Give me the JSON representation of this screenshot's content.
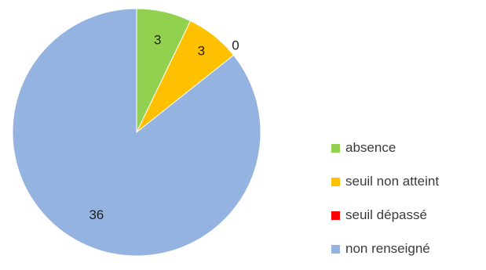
{
  "chart_data": {
    "type": "pie",
    "title": "",
    "categories": [
      "absence",
      "seuil non atteint",
      "seuil dépassé",
      "non renseigné"
    ],
    "values": [
      3,
      3,
      0,
      36
    ],
    "data_labels": [
      "3",
      "3",
      "0",
      "36"
    ],
    "colors": [
      "#92d050",
      "#ffc000",
      "#ff0000",
      "#95b3e1"
    ],
    "start_angle": "12 o'clock",
    "direction": "clockwise",
    "legend_position": "right"
  }
}
